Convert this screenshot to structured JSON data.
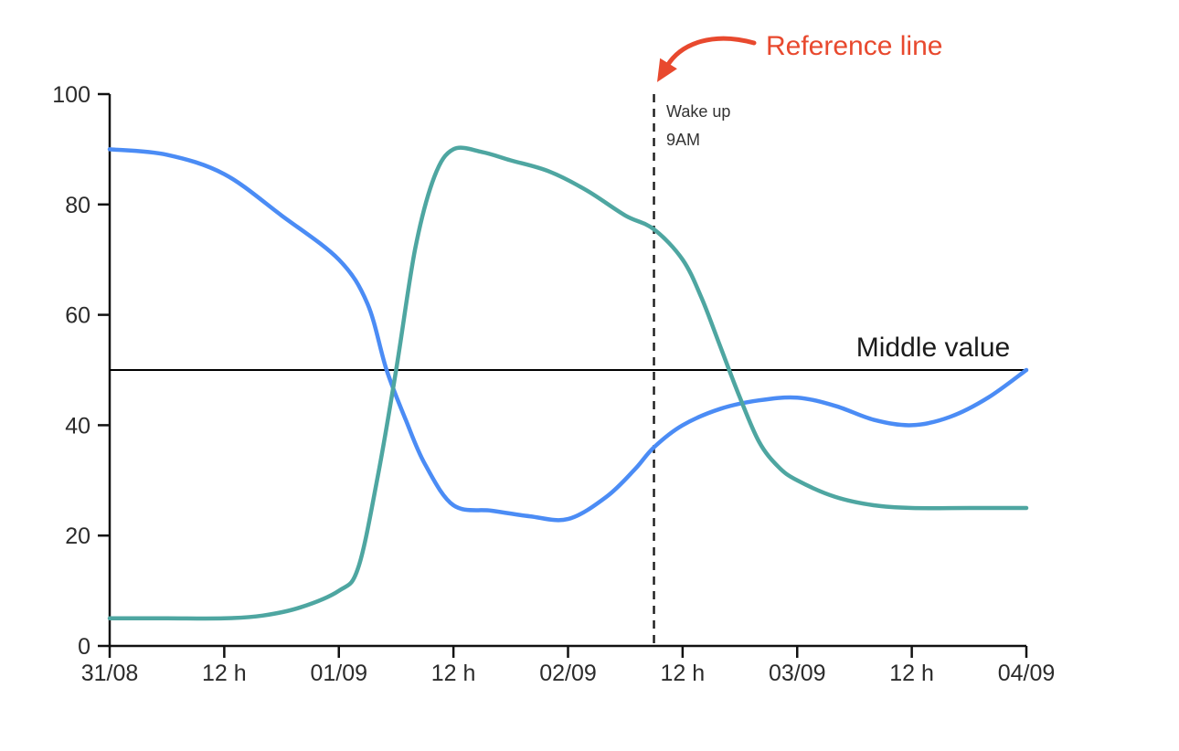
{
  "figure": {
    "background": "#ffffff"
  },
  "annotations": {
    "reference_line_label": "Reference line",
    "reference_line_color": "#e8492e",
    "wake_up_line1": "Wake up",
    "wake_up_line2": "9AM",
    "middle_value_label": "Middle value"
  },
  "chart_data": {
    "type": "line",
    "title": "",
    "xlabel": "",
    "ylabel": "",
    "grid": false,
    "legend": "none",
    "xlim_hours": [
      0,
      96
    ],
    "ylim": [
      0,
      100
    ],
    "x_ticks": [
      {
        "hour": 0,
        "label": "31/08"
      },
      {
        "hour": 12,
        "label": "12 h"
      },
      {
        "hour": 24,
        "label": "01/09"
      },
      {
        "hour": 36,
        "label": "12 h"
      },
      {
        "hour": 48,
        "label": "02/09"
      },
      {
        "hour": 60,
        "label": "12 h"
      },
      {
        "hour": 72,
        "label": "03/09"
      },
      {
        "hour": 84,
        "label": "12 h"
      },
      {
        "hour": 96,
        "label": "04/09"
      }
    ],
    "y_ticks": [
      0,
      20,
      40,
      60,
      80,
      100
    ],
    "series": [
      {
        "name": "blue series",
        "color": "#4b8cf5",
        "x_hours": [
          0,
          6,
          12,
          18,
          24,
          27,
          29,
          31,
          33,
          36,
          40,
          44,
          48,
          52,
          55,
          57,
          60,
          64,
          68,
          72,
          76,
          80,
          84,
          88,
          92,
          96
        ],
        "values": [
          90,
          89,
          85.5,
          78,
          70,
          62,
          50,
          41,
          33,
          25.5,
          24.5,
          23.5,
          23,
          27,
          32,
          36,
          40,
          43,
          44.5,
          45,
          43.5,
          41,
          40,
          41.5,
          45,
          50
        ]
      },
      {
        "name": "teal series",
        "color": "#4ea6a1",
        "x_hours": [
          0,
          6,
          12,
          16,
          20,
          24,
          26,
          28,
          30,
          32,
          34,
          36,
          39,
          42,
          46,
          50,
          54,
          57,
          60,
          62,
          64,
          66,
          68,
          70,
          72,
          76,
          80,
          84,
          90,
          96
        ],
        "values": [
          5,
          5,
          5,
          5.5,
          7,
          10,
          14,
          30,
          50,
          72,
          85,
          90,
          89.5,
          88,
          86,
          82.5,
          78,
          75.5,
          70,
          63,
          54,
          45,
          37,
          32.5,
          30,
          27,
          25.5,
          25,
          25,
          25
        ]
      }
    ],
    "reference_lines": [
      {
        "orientation": "horizontal",
        "value": 50,
        "label": "Middle value",
        "style": "solid",
        "color": "#000000"
      },
      {
        "orientation": "vertical",
        "hour": 57,
        "label": "Wake up 9AM",
        "style": "dashed",
        "color": "#1a1a1a"
      }
    ],
    "annotation": {
      "text": "Reference line",
      "color": "#e8492e",
      "points_to": "vertical dashed reference line"
    },
    "axis_color": "#111111",
    "tick_label_color": "#2b2b2b"
  }
}
